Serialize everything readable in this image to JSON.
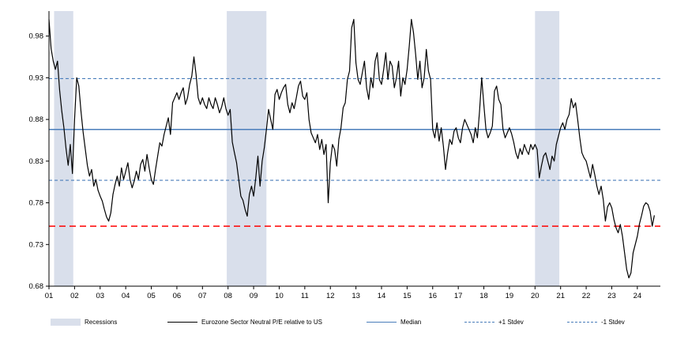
{
  "chart_data": {
    "type": "line",
    "title": "",
    "xlabel": "",
    "ylabel": "",
    "ylim": [
      0.68,
      1.01
    ],
    "xlim": [
      2001,
      2024.9
    ],
    "yticks": [
      0.68,
      0.73,
      0.78,
      0.83,
      0.88,
      0.93,
      0.98
    ],
    "ytick_labels": [
      "0.68",
      "0.73",
      "0.78",
      "0.83",
      "0.88",
      "0.93",
      "0.98"
    ],
    "xtick_labels": [
      "01",
      "02",
      "03",
      "04",
      "05",
      "06",
      "07",
      "08",
      "09",
      "10",
      "11",
      "12",
      "13",
      "14",
      "15",
      "16",
      "17",
      "18",
      "19",
      "20",
      "21",
      "22",
      "23",
      "24"
    ],
    "x_start_year": 2001,
    "points_per_year": 12,
    "series": [
      {
        "name": "Eurozone Sector Neutral P/E relative to US",
        "values": [
          1.0,
          0.965,
          0.95,
          0.94,
          0.95,
          0.915,
          0.89,
          0.87,
          0.845,
          0.825,
          0.85,
          0.815,
          0.88,
          0.93,
          0.92,
          0.89,
          0.865,
          0.845,
          0.825,
          0.812,
          0.82,
          0.8,
          0.808,
          0.795,
          0.788,
          0.782,
          0.772,
          0.763,
          0.758,
          0.768,
          0.79,
          0.802,
          0.812,
          0.8,
          0.822,
          0.808,
          0.818,
          0.828,
          0.808,
          0.798,
          0.806,
          0.818,
          0.808,
          0.826,
          0.832,
          0.818,
          0.838,
          0.822,
          0.808,
          0.802,
          0.82,
          0.836,
          0.852,
          0.848,
          0.862,
          0.872,
          0.882,
          0.862,
          0.9,
          0.906,
          0.912,
          0.904,
          0.912,
          0.918,
          0.898,
          0.906,
          0.922,
          0.932,
          0.955,
          0.934,
          0.906,
          0.898,
          0.906,
          0.898,
          0.893,
          0.906,
          0.898,
          0.893,
          0.906,
          0.898,
          0.888,
          0.895,
          0.906,
          0.893,
          0.885,
          0.892,
          0.853,
          0.84,
          0.828,
          0.808,
          0.788,
          0.783,
          0.772,
          0.764,
          0.79,
          0.8,
          0.788,
          0.81,
          0.836,
          0.8,
          0.83,
          0.846,
          0.868,
          0.892,
          0.88,
          0.868,
          0.91,
          0.916,
          0.904,
          0.912,
          0.918,
          0.922,
          0.898,
          0.888,
          0.9,
          0.893,
          0.906,
          0.92,
          0.926,
          0.908,
          0.904,
          0.912,
          0.88,
          0.864,
          0.858,
          0.852,
          0.862,
          0.844,
          0.856,
          0.838,
          0.85,
          0.78,
          0.828,
          0.85,
          0.844,
          0.824,
          0.856,
          0.87,
          0.894,
          0.9,
          0.928,
          0.938,
          0.99,
          1.0,
          0.948,
          0.928,
          0.922,
          0.936,
          0.95,
          0.918,
          0.904,
          0.93,
          0.918,
          0.95,
          0.96,
          0.928,
          0.922,
          0.94,
          0.96,
          0.928,
          0.95,
          0.944,
          0.918,
          0.93,
          0.95,
          0.908,
          0.93,
          0.922,
          0.94,
          0.968,
          1.0,
          0.984,
          0.958,
          0.928,
          0.95,
          0.918,
          0.93,
          0.964,
          0.938,
          0.928,
          0.868,
          0.858,
          0.876,
          0.854,
          0.87,
          0.848,
          0.82,
          0.84,
          0.856,
          0.85,
          0.866,
          0.87,
          0.858,
          0.852,
          0.87,
          0.88,
          0.874,
          0.868,
          0.862,
          0.852,
          0.87,
          0.858,
          0.89,
          0.93,
          0.898,
          0.868,
          0.858,
          0.864,
          0.872,
          0.914,
          0.92,
          0.904,
          0.898,
          0.868,
          0.858,
          0.864,
          0.87,
          0.863,
          0.853,
          0.84,
          0.833,
          0.845,
          0.838,
          0.85,
          0.843,
          0.838,
          0.85,
          0.844,
          0.85,
          0.844,
          0.81,
          0.824,
          0.836,
          0.84,
          0.83,
          0.82,
          0.836,
          0.83,
          0.85,
          0.86,
          0.87,
          0.876,
          0.868,
          0.88,
          0.886,
          0.905,
          0.894,
          0.9,
          0.88,
          0.858,
          0.84,
          0.834,
          0.83,
          0.82,
          0.81,
          0.826,
          0.814,
          0.8,
          0.79,
          0.8,
          0.784,
          0.758,
          0.775,
          0.78,
          0.774,
          0.76,
          0.75,
          0.744,
          0.754,
          0.74,
          0.72,
          0.7,
          0.69,
          0.696,
          0.72,
          0.73,
          0.74,
          0.755,
          0.765,
          0.776,
          0.78,
          0.778,
          0.77,
          0.752,
          0.765
        ]
      }
    ],
    "reference_lines": {
      "median": 0.868,
      "plus_1_stdev": 0.929,
      "minus_1_stdev": 0.807,
      "red_dashed": 0.752
    },
    "recessions": [
      [
        2001.2,
        2001.95
      ],
      [
        2007.95,
        2009.5
      ],
      [
        2020.0,
        2020.95
      ]
    ],
    "legend": [
      {
        "label": "Recessions",
        "swatch": "band"
      },
      {
        "label": "Eurozone Sector Neutral P/E relative to US",
        "swatch": "line-black"
      },
      {
        "label": "Median",
        "swatch": "line-blue"
      },
      {
        "label": "+1 Stdev",
        "swatch": "dashed-blue"
      },
      {
        "label": "-1 Stdev",
        "swatch": "dashed-blue"
      }
    ],
    "colors": {
      "series": "#000000",
      "median_line": "#4a7ebb",
      "stdev_line": "#4a7ebb",
      "red_line": "#ff0000",
      "recession_band": "#d9dfeb",
      "axis": "#000000"
    },
    "grid": "off",
    "legend_position": "bottom"
  }
}
